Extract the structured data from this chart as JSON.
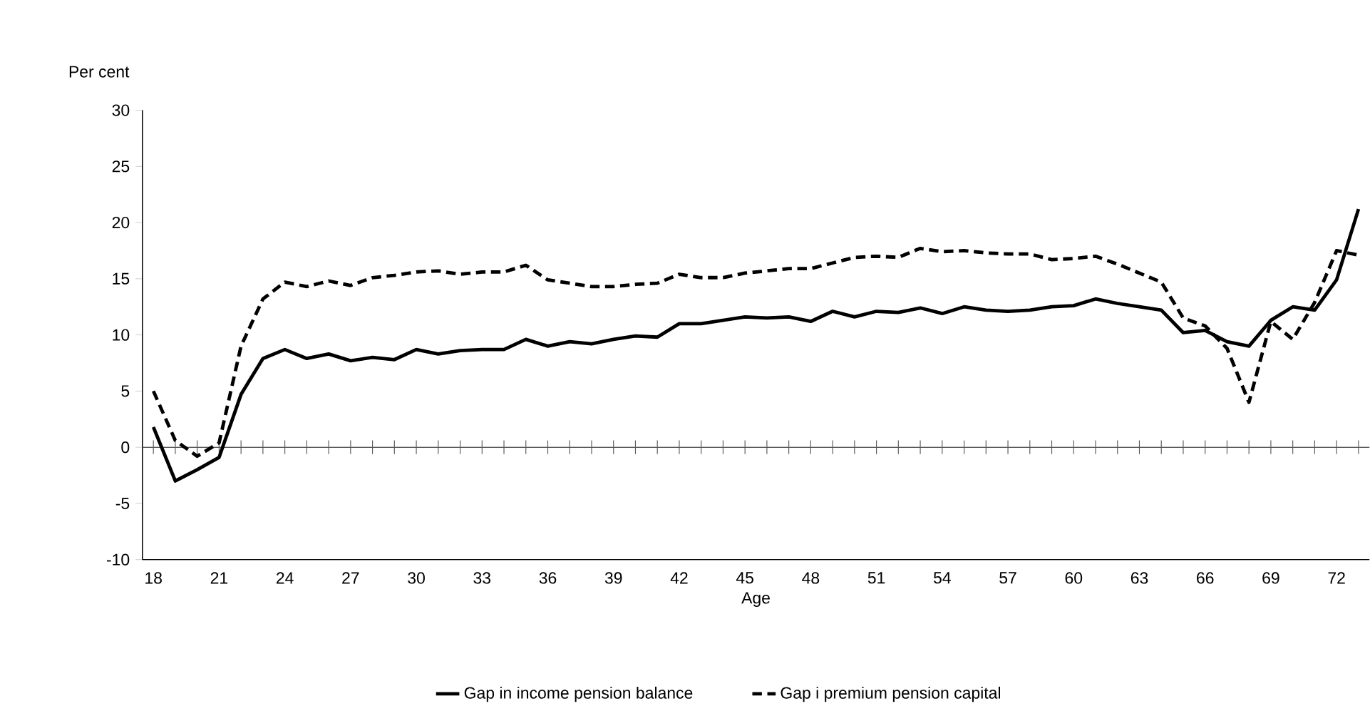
{
  "chart_data": {
    "type": "line",
    "xlabel": "Age",
    "ylabel": "Per cent",
    "categories": [
      "18",
      null,
      null,
      "21",
      null,
      null,
      "24",
      null,
      null,
      "27",
      null,
      null,
      "30",
      null,
      null,
      "33",
      null,
      null,
      "36",
      null,
      null,
      "39",
      null,
      null,
      "42",
      null,
      null,
      "45",
      null,
      null,
      "48",
      null,
      null,
      "51",
      null,
      null,
      "54",
      null,
      null,
      "57",
      null,
      null,
      "60",
      null,
      null,
      "63",
      null,
      null,
      "66",
      null,
      null,
      "69",
      null,
      null,
      "72",
      null
    ],
    "series": [
      {
        "name": "Gap in income pension balance",
        "color": "#000000",
        "line_style": "solid",
        "values": [
          1.8,
          -3.0,
          -2.0,
          -0.9,
          4.7,
          7.9,
          8.7,
          7.9,
          8.3,
          7.7,
          8.0,
          7.8,
          8.7,
          8.3,
          8.6,
          8.7,
          8.7,
          9.6,
          9.0,
          9.4,
          9.2,
          9.6,
          9.9,
          9.8,
          11.0,
          11.0,
          11.3,
          11.6,
          11.5,
          11.6,
          11.2,
          12.1,
          11.6,
          12.1,
          12.0,
          12.4,
          11.9,
          12.5,
          12.2,
          12.1,
          12.2,
          12.5,
          12.6,
          13.2,
          12.8,
          12.5,
          12.2,
          10.2,
          10.4,
          9.4,
          9.0,
          11.3,
          12.5,
          12.2,
          14.9,
          21.2
        ]
      },
      {
        "name": "Gap i premium pension capital",
        "color": "#000000",
        "line_style": "dashed",
        "values": [
          5.0,
          0.6,
          -0.8,
          0.4,
          9.0,
          13.2,
          14.7,
          14.3,
          14.8,
          14.4,
          15.1,
          15.3,
          15.6,
          15.7,
          15.4,
          15.6,
          15.6,
          16.2,
          14.9,
          14.6,
          14.3,
          14.3,
          14.5,
          14.6,
          15.4,
          15.1,
          15.1,
          15.5,
          15.7,
          15.9,
          15.9,
          16.4,
          16.9,
          17.0,
          16.9,
          17.7,
          17.4,
          17.5,
          17.3,
          17.2,
          17.2,
          16.7,
          16.8,
          17.0,
          16.3,
          15.5,
          14.7,
          11.5,
          10.8,
          8.8,
          4.0,
          11.2,
          9.6,
          12.9,
          17.5,
          17.1
        ]
      }
    ],
    "ylim": [
      -10,
      30
    ],
    "yticks": [
      -10,
      -5,
      0,
      5,
      10,
      15,
      20,
      25,
      30
    ],
    "ref_lines": [
      {
        "axis": "y",
        "value": 0
      }
    ],
    "grid": false,
    "legend": "bottom",
    "marker": "none"
  }
}
